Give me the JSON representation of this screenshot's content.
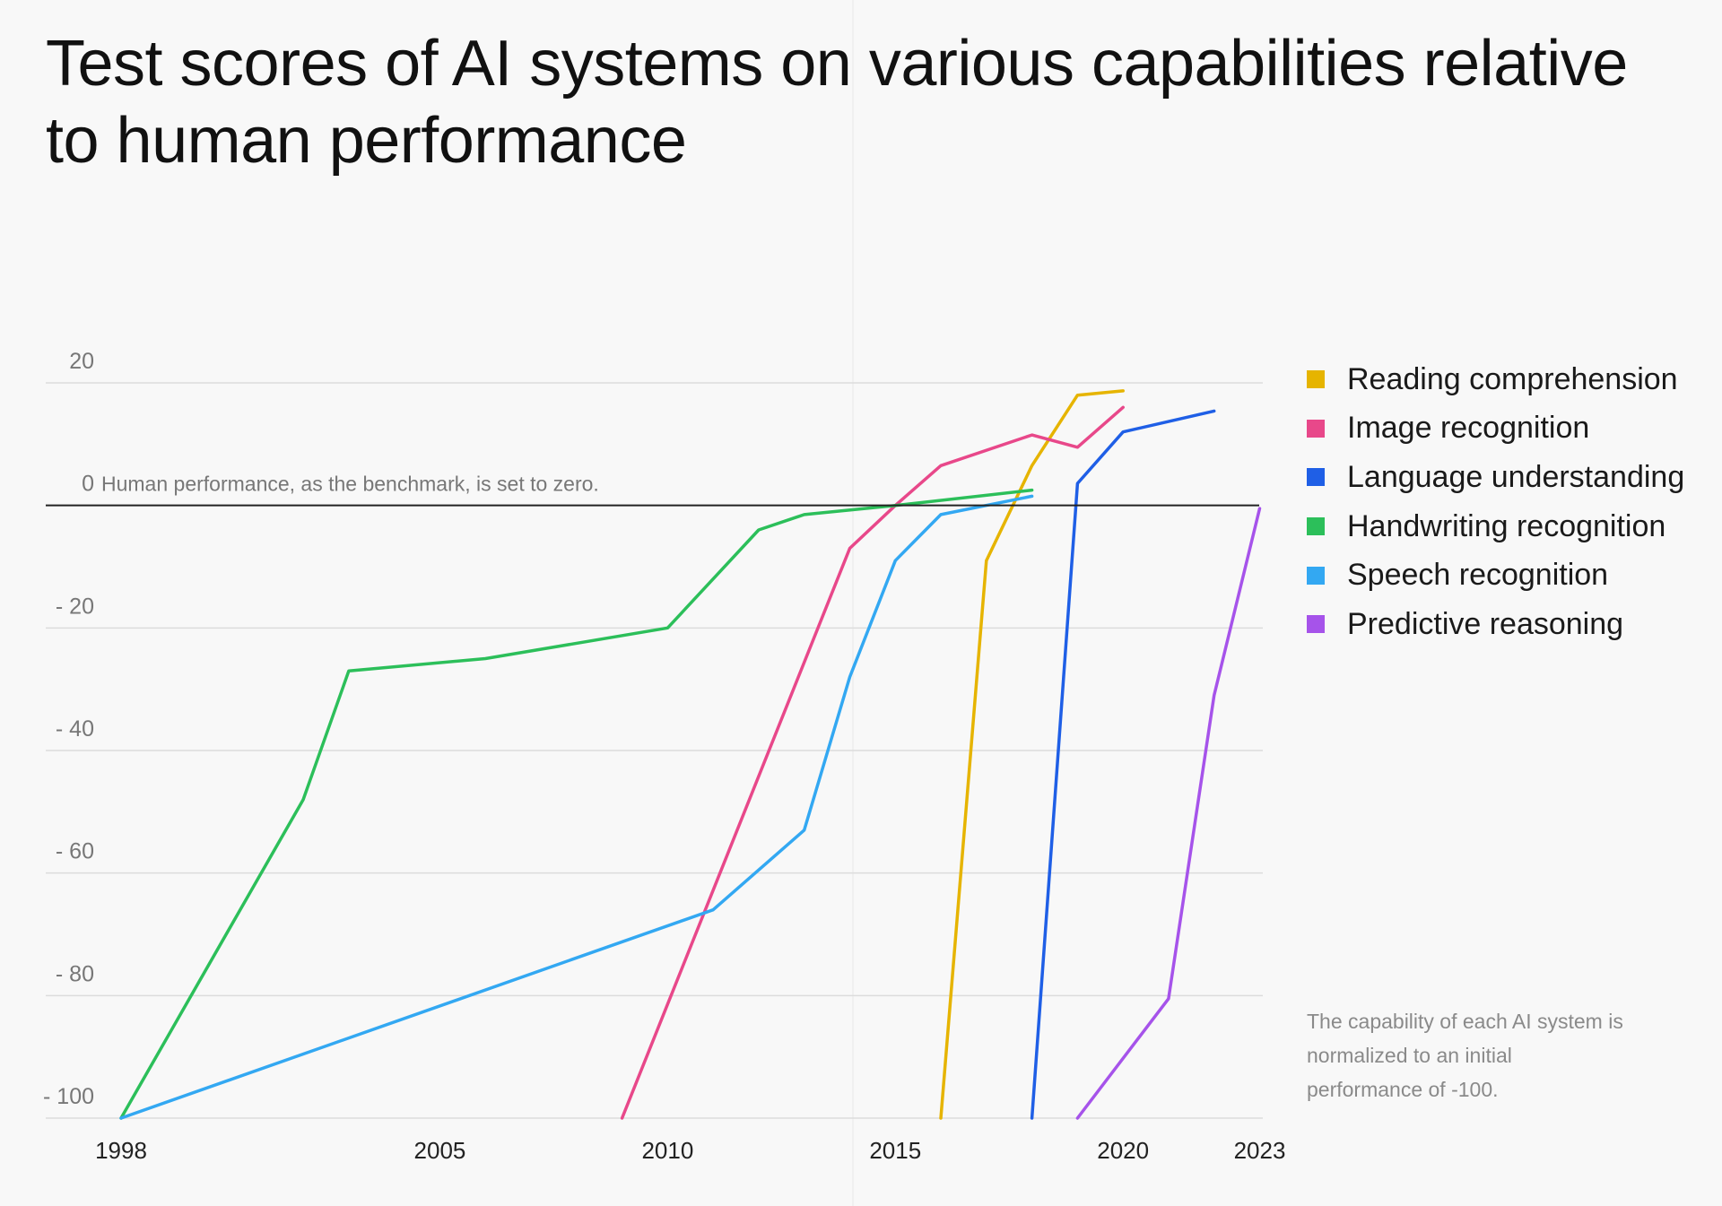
{
  "chart_data": {
    "type": "line",
    "title": "Test scores of AI systems on various capabilities relative to human performance",
    "annotation": "Human performance, as the benchmark, is set to zero.",
    "note": "The capability of each AI system is normalized to an initial performance of -100.",
    "xlim": [
      1998,
      2023
    ],
    "ylim": [
      -100,
      20
    ],
    "x_ticks": [
      1998,
      2005,
      2010,
      2015,
      2020,
      2023
    ],
    "y_ticks": [
      20,
      0,
      -20,
      -40,
      -60,
      -80,
      -100
    ],
    "y_tick_labels": [
      "20",
      "0",
      "- 20",
      "- 40",
      "- 60",
      "- 80",
      "- 100"
    ],
    "grid": "horizontal",
    "legend_position": "right",
    "series": [
      {
        "name": "Reading comprehension",
        "color": "#e6b400",
        "points": [
          [
            2016,
            -100
          ],
          [
            2017,
            -9
          ],
          [
            2018,
            6.5
          ],
          [
            2019,
            18
          ],
          [
            2020,
            18.7
          ]
        ]
      },
      {
        "name": "Image recognition",
        "color": "#e8488a",
        "points": [
          [
            2009,
            -100
          ],
          [
            2014,
            -7
          ],
          [
            2015,
            0
          ],
          [
            2016,
            6.5
          ],
          [
            2018,
            11.5
          ],
          [
            2019,
            9.5
          ],
          [
            2020,
            16
          ]
        ]
      },
      {
        "name": "Language understanding",
        "color": "#1f5fe6",
        "points": [
          [
            2018,
            -100
          ],
          [
            2019,
            3.6
          ],
          [
            2020,
            12
          ],
          [
            2022,
            15.4
          ]
        ]
      },
      {
        "name": "Handwriting recognition",
        "color": "#2cbf5a",
        "points": [
          [
            1998,
            -100
          ],
          [
            2002,
            -48
          ],
          [
            2003,
            -27
          ],
          [
            2006,
            -25
          ],
          [
            2010,
            -20
          ],
          [
            2012,
            -4
          ],
          [
            2013,
            -1.5
          ],
          [
            2015,
            0
          ],
          [
            2018,
            2.5
          ]
        ]
      },
      {
        "name": "Speech recognition",
        "color": "#33a8f2",
        "points": [
          [
            1998,
            -100
          ],
          [
            2011,
            -66
          ],
          [
            2013,
            -53
          ],
          [
            2014,
            -28
          ],
          [
            2015,
            -9
          ],
          [
            2016,
            -1.5
          ],
          [
            2018,
            1.5
          ]
        ]
      },
      {
        "name": "Predictive reasoning",
        "color": "#a653ea",
        "points": [
          [
            2019,
            -100
          ],
          [
            2021,
            -80.5
          ],
          [
            2022,
            -31
          ],
          [
            2023,
            -0.5
          ]
        ]
      }
    ]
  }
}
